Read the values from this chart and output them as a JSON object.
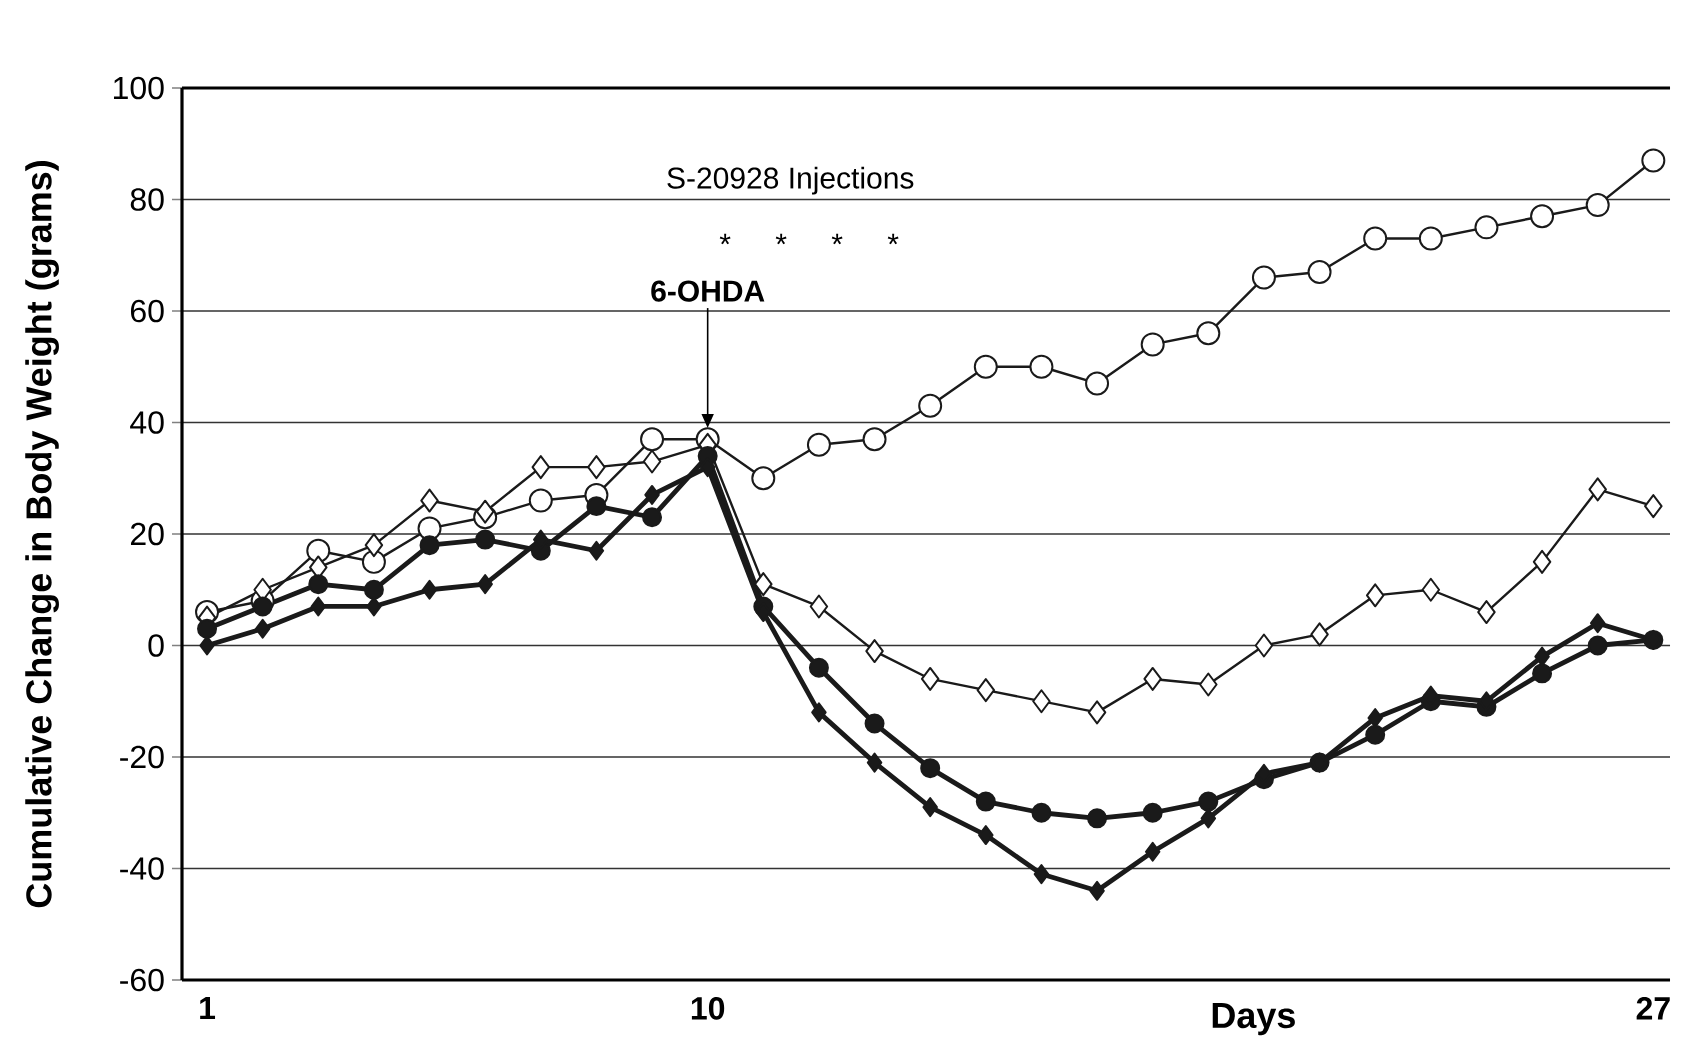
{
  "chart_data": {
    "type": "line",
    "ylabel": "Cumulative Change in Body Weight (grams)",
    "xlabel": "Days",
    "x": [
      1,
      2,
      3,
      4,
      5,
      6,
      7,
      8,
      9,
      10,
      11,
      12,
      13,
      14,
      15,
      16,
      17,
      18,
      19,
      20,
      21,
      22,
      23,
      24,
      25,
      26,
      27
    ],
    "series": [
      {
        "color": "#1a1a1a",
        "marker": "circle",
        "values": [
          6,
          8,
          17,
          15,
          21,
          23,
          26,
          27,
          37,
          37,
          30,
          36,
          37,
          43,
          50,
          50,
          47,
          54,
          56,
          66,
          67,
          73,
          73,
          75,
          77,
          79,
          87
        ]
      },
      {
        "color": "#1a1a1a",
        "marker": "diamond",
        "values": [
          5,
          10,
          14,
          18,
          26,
          24,
          32,
          32,
          33,
          36,
          11,
          7,
          -1,
          -6,
          -8,
          -10,
          -12,
          -6,
          -7,
          0,
          2,
          9,
          10,
          6,
          15,
          28,
          25
        ]
      },
      {
        "color": "#1a1a1a",
        "marker": "circle",
        "values": [
          3,
          7,
          11,
          10,
          18,
          19,
          17,
          25,
          23,
          34,
          7,
          -4,
          -14,
          -22,
          -28,
          -30,
          -31,
          -30,
          -28,
          -24,
          -21,
          -16,
          -10,
          -11,
          -5,
          0,
          1
        ]
      },
      {
        "color": "#1a1a1a",
        "marker": "diamond",
        "values": [
          0,
          3,
          7,
          7,
          10,
          11,
          19,
          17,
          27,
          32,
          6,
          -12,
          -21,
          -29,
          -34,
          -41,
          -44,
          -37,
          -31,
          -23,
          -21,
          -13,
          -9,
          -10,
          -2,
          4,
          1
        ]
      }
    ],
    "annotations": [
      "S-20928 Injections",
      "*",
      "*",
      "*",
      "*",
      {
        "text": "6-OHDA",
        "x": 10,
        "y": 39
      }
    ],
    "xlim": [
      0.55,
      27.3
    ],
    "xticks": [
      1,
      10,
      27
    ],
    "ylim": [
      -60,
      100
    ],
    "yticks": [
      -60,
      -40,
      -20,
      0,
      20,
      40,
      60,
      80,
      100
    ],
    "grid": "y"
  }
}
